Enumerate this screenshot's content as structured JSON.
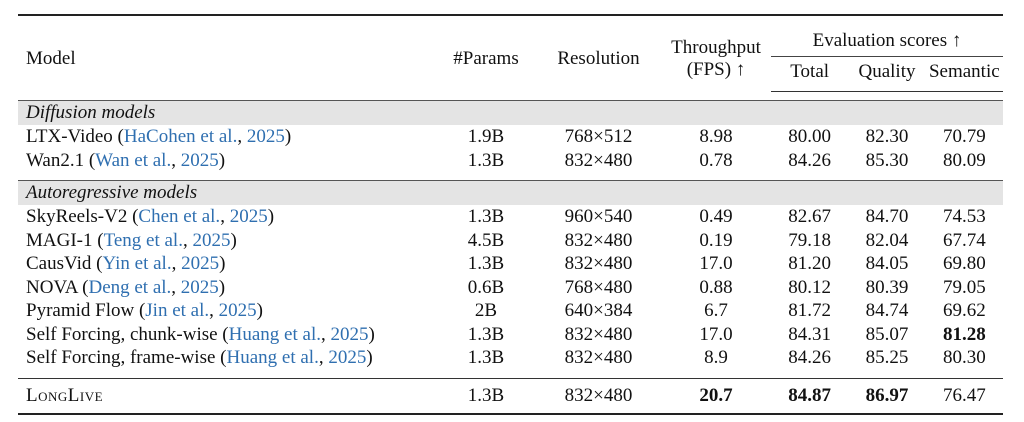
{
  "header": {
    "model": "Model",
    "params": "#Params",
    "resolution": "Resolution",
    "throughput_line1": "Throughput",
    "throughput_line2": "(FPS) ↑",
    "eval_scores": "Evaluation scores ↑",
    "total": "Total",
    "quality": "Quality",
    "semantic": "Semantic"
  },
  "groups": [
    {
      "label": "Diffusion models",
      "rows": [
        {
          "name": "LTX-Video (",
          "cite_author": "HaCohen et al.",
          "cite_sep": ", ",
          "cite_year": "2025",
          "close": ")",
          "params": "1.9B",
          "resolution": "768×512",
          "fps": "8.98",
          "total": "80.00",
          "quality": "82.30",
          "semantic": "70.79"
        },
        {
          "name": "Wan2.1 (",
          "cite_author": "Wan et al.",
          "cite_sep": ", ",
          "cite_year": "2025",
          "close": ")",
          "params": "1.3B",
          "resolution": "832×480",
          "fps": "0.78",
          "total": "84.26",
          "quality": "85.30",
          "semantic": "80.09"
        }
      ]
    },
    {
      "label": "Autoregressive models",
      "rows": [
        {
          "name": "SkyReels-V2 (",
          "cite_author": "Chen et al.",
          "cite_sep": ", ",
          "cite_year": "2025",
          "close": ")",
          "params": "1.3B",
          "resolution": "960×540",
          "fps": "0.49",
          "total": "82.67",
          "quality": "84.70",
          "semantic": "74.53"
        },
        {
          "name": "MAGI-1 (",
          "cite_author": "Teng et al.",
          "cite_sep": ", ",
          "cite_year": "2025",
          "close": ")",
          "params": "4.5B",
          "resolution": "832×480",
          "fps": "0.19",
          "total": "79.18",
          "quality": "82.04",
          "semantic": "67.74"
        },
        {
          "name": "CausVid (",
          "cite_author": "Yin et al.",
          "cite_sep": ", ",
          "cite_year": "2025",
          "close": ")",
          "params": "1.3B",
          "resolution": "832×480",
          "fps": "17.0",
          "total": "81.20",
          "quality": "84.05",
          "semantic": "69.80"
        },
        {
          "name": "NOVA (",
          "cite_author": "Deng et al.",
          "cite_sep": ", ",
          "cite_year": "2025",
          "close": ")",
          "params": "0.6B",
          "resolution": "768×480",
          "fps": "0.88",
          "total": "80.12",
          "quality": "80.39",
          "semantic": "79.05"
        },
        {
          "name": "Pyramid Flow (",
          "cite_author": "Jin et al.",
          "cite_sep": ", ",
          "cite_year": "2025",
          "close": ")",
          "params": "2B",
          "resolution": "640×384",
          "fps": "6.7",
          "total": "81.72",
          "quality": "84.74",
          "semantic": "69.62"
        },
        {
          "name": "Self Forcing, chunk-wise (",
          "cite_author": "Huang et al.",
          "cite_sep": ", ",
          "cite_year": "2025",
          "close": ")",
          "params": "1.3B",
          "resolution": "832×480",
          "fps": "17.0",
          "total": "84.31",
          "quality": "85.07",
          "semantic": "81.28",
          "semantic_bold": true
        },
        {
          "name": "Self Forcing, frame-wise (",
          "cite_author": "Huang et al.",
          "cite_sep": ", ",
          "cite_year": "2025",
          "close": ")",
          "params": "1.3B",
          "resolution": "832×480",
          "fps": "8.9",
          "total": "84.26",
          "quality": "85.25",
          "semantic": "80.30"
        }
      ]
    }
  ],
  "ours": {
    "name": "LongLive",
    "params": "1.3B",
    "resolution": "832×480",
    "fps": "20.7",
    "total": "84.87",
    "quality": "86.97",
    "semantic": "76.47"
  },
  "colors": {
    "citation_link": "#2f6fb0",
    "group_band": "#e4e4e4"
  }
}
